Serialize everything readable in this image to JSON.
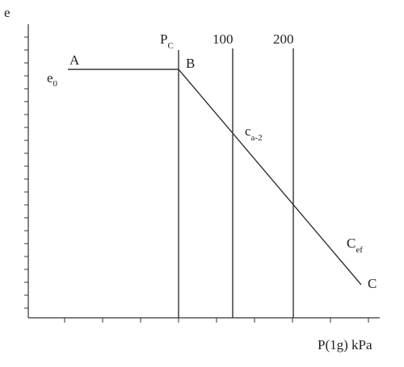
{
  "axes": {
    "y_label": "e",
    "x_label": "P(1g) kPa"
  },
  "lines": {
    "pc_main": "P",
    "pc_sub": "C",
    "line_100": "100",
    "line_200": "200"
  },
  "points": {
    "e0_main": "e",
    "e0_sub": "0",
    "a": "A",
    "b": "B",
    "c": "C",
    "ca_main": "c",
    "ca_sub": "a-2",
    "cef_main": "C",
    "cef_sub": "ef"
  }
}
